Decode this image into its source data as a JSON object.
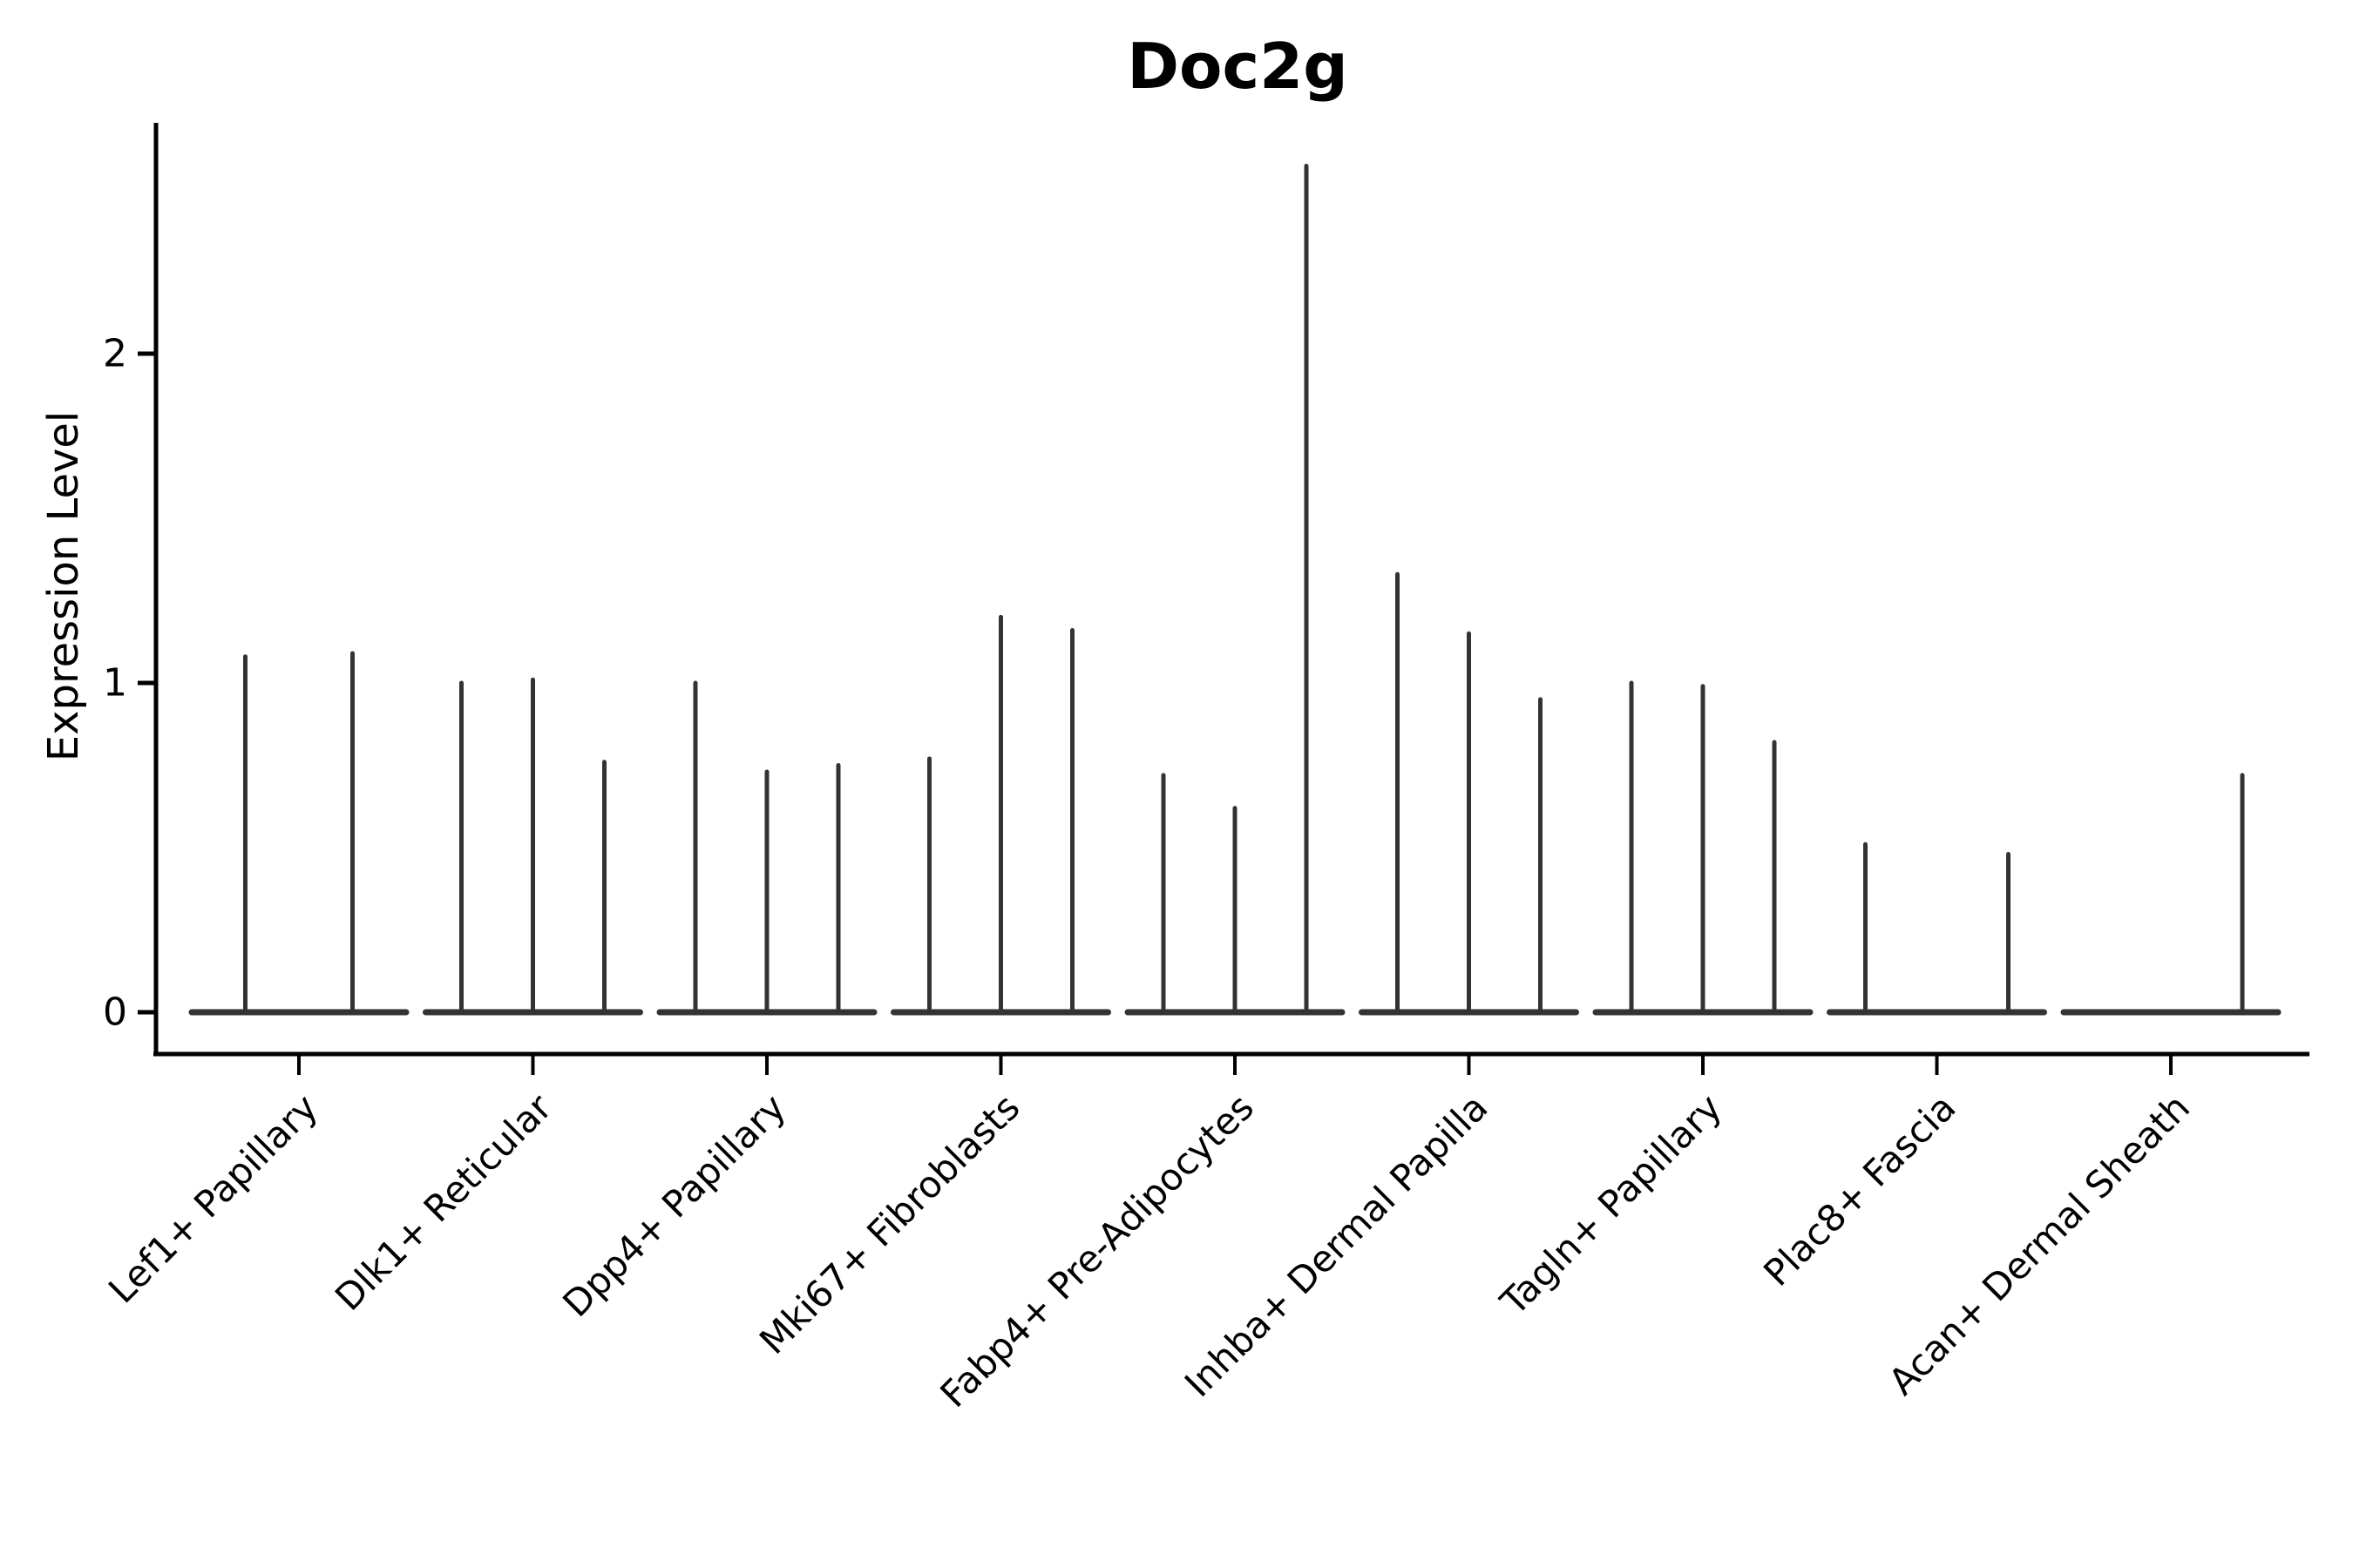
{
  "chart_data": {
    "type": "violin",
    "title": "Doc2g",
    "xlabel": "",
    "ylabel": "Expression Level",
    "yticks": [
      0,
      1,
      2
    ],
    "ylim": [
      -0.13,
      2.7
    ],
    "grid": false,
    "legend": null,
    "style_note": "Seurat-style stacked violin: each cluster shows per-sample violins collapsed to thin vertical spikes with a flat baseline at expression 0; spike top = maximum expression level",
    "groups": [
      {
        "label": "Lef1+ Papillary",
        "violin_max_values": [
          1.08,
          1.09
        ]
      },
      {
        "label": "Dlk1+ Reticular",
        "violin_max_values": [
          1.0,
          1.01,
          0.76
        ]
      },
      {
        "label": "Dpp4+ Papillary",
        "violin_max_values": [
          1.0,
          0.73,
          0.75
        ]
      },
      {
        "label": "Mki67+ Fibroblasts",
        "violin_max_values": [
          0.77,
          1.2,
          1.16
        ]
      },
      {
        "label": "Fabp4+ Pre-Adipocytes",
        "violin_max_values": [
          0.72,
          0.62,
          2.57
        ]
      },
      {
        "label": "Inhba+ Dermal Papilla",
        "violin_max_values": [
          1.33,
          1.15,
          0.95
        ]
      },
      {
        "label": "Tagln+ Papillary",
        "violin_max_values": [
          1.0,
          0.99,
          0.82
        ]
      },
      {
        "label": "Plac8+ Fascia",
        "violin_max_values": [
          0.51,
          0,
          0.48
        ]
      },
      {
        "label": "Acan+ Dermal Sheath",
        "violin_max_values": [
          0,
          0,
          0.72
        ]
      }
    ],
    "colors": {
      "violin": "#333333",
      "axis": "#000000",
      "text": "#000000",
      "background": "#ffffff"
    }
  }
}
